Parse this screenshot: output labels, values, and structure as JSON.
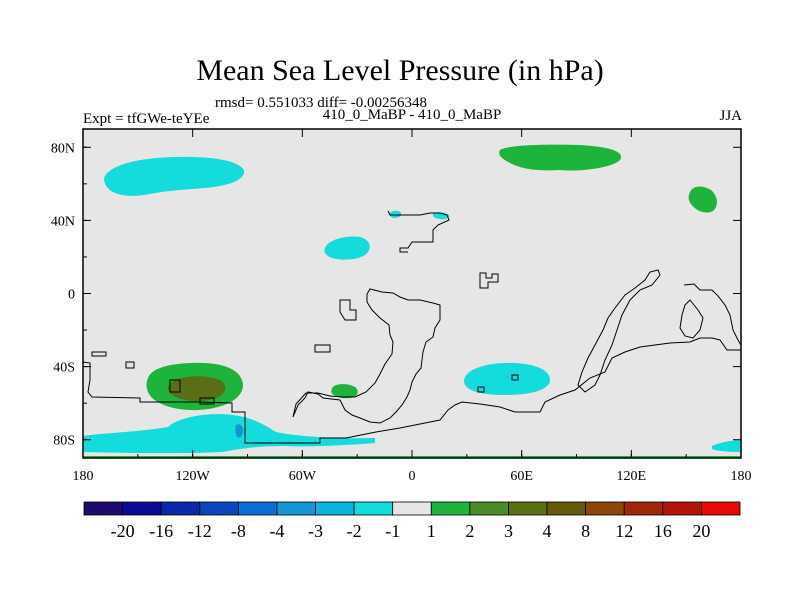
{
  "header": {
    "title": "Mean Sea Level Pressure (in hPa)",
    "stats": "rmsd= 0.551033 diff= -0.00256348",
    "experiment": "Expt = tfGWe-teYEe",
    "comparison": "410_0_MaBP - 410_0_MaBP",
    "season": "JJA"
  },
  "chart_data": {
    "type": "heatmap",
    "title": "Mean Sea Level Pressure (in hPa)",
    "xlabel": "",
    "ylabel": "",
    "xlim": [
      -180,
      180
    ],
    "ylim": [
      -90,
      90
    ],
    "x_ticks": [
      {
        "value": -180,
        "label": "180"
      },
      {
        "value": -120,
        "label": "120W"
      },
      {
        "value": -60,
        "label": "60W"
      },
      {
        "value": 0,
        "label": "0"
      },
      {
        "value": 60,
        "label": "60E"
      },
      {
        "value": 120,
        "label": "120E"
      },
      {
        "value": 180,
        "label": "180"
      }
    ],
    "y_ticks": [
      {
        "value": 80,
        "label": "80N"
      },
      {
        "value": 40,
        "label": "40N"
      },
      {
        "value": 0,
        "label": "0"
      },
      {
        "value": -40,
        "label": "40S"
      },
      {
        "value": -80,
        "label": "80S"
      }
    ],
    "colorbar": {
      "levels": [
        -20,
        -16,
        -12,
        -8,
        -4,
        -3,
        -2,
        -1,
        1,
        2,
        3,
        4,
        8,
        12,
        16,
        20
      ],
      "labels": [
        "-20",
        "-16",
        "-12",
        "-8",
        "-4",
        "-3",
        "-2",
        "-1",
        "1",
        "2",
        "3",
        "4",
        "8",
        "12",
        "16",
        "20"
      ],
      "colors": [
        "#1e0a6e",
        "#0a0a96",
        "#0a28aa",
        "#0a46be",
        "#0a6ed2",
        "#1496d2",
        "#0ab4dc",
        "#14dcdc",
        "#e6e6e6",
        "#1eb43c",
        "#4b8c28",
        "#5a6e14",
        "#645a0a",
        "#8c460a",
        "#a0280a",
        "#b4140a",
        "#e60a0a"
      ]
    },
    "anomaly_regions": [
      {
        "name": "north-pacific-low",
        "sign": "negative",
        "category": "-2 to -1",
        "color": "#14dcdc",
        "lon_range": [
          -168,
          -118
        ],
        "lat_range": [
          60,
          76
        ]
      },
      {
        "name": "arctic-siberia-high",
        "sign": "positive",
        "category": "1 to 2",
        "color": "#1eb43c",
        "lon_range": [
          48,
          116
        ],
        "lat_range": [
          68,
          82
        ]
      },
      {
        "name": "northwest-pacific-high",
        "sign": "positive",
        "category": "1 to 2",
        "color": "#1eb43c",
        "lon_range": [
          153,
          171
        ],
        "lat_range": [
          45,
          60
        ]
      },
      {
        "name": "north-atlantic-low",
        "sign": "negative",
        "category": "-2 to -1",
        "color": "#14dcdc",
        "lon_range": [
          -48,
          -22
        ],
        "lat_range": [
          27,
          40
        ]
      },
      {
        "name": "europe-small-low",
        "sign": "negative",
        "category": "-2 to -1",
        "color": "#14dcdc",
        "lon_range": [
          -10,
          20
        ],
        "lat_range": [
          42,
          47
        ]
      },
      {
        "name": "south-pacific-high",
        "sign": "positive",
        "category": "2 to 4",
        "color": "#4b8c28",
        "lon_range": [
          -147,
          -95
        ],
        "lat_range": [
          -62,
          -38
        ]
      },
      {
        "name": "south-atlantic-high",
        "sign": "positive",
        "category": "1 to 2",
        "color": "#1eb43c",
        "lon_range": [
          -44,
          -28
        ],
        "lat_range": [
          -57,
          -48
        ]
      },
      {
        "name": "indian-ocean-low",
        "sign": "negative",
        "category": "-2 to -1",
        "color": "#14dcdc",
        "lon_range": [
          31,
          81
        ],
        "lat_range": [
          -56,
          -38
        ]
      },
      {
        "name": "antarctic-low",
        "sign": "negative",
        "category": "-3 to -1",
        "color": "#14dcdc",
        "lon_range": [
          -180,
          -20
        ],
        "lat_range": [
          -90,
          -62
        ]
      },
      {
        "name": "antarctic-ross-low",
        "sign": "negative",
        "category": "-2 to -1",
        "color": "#14dcdc",
        "lon_range": [
          162,
          180
        ],
        "lat_range": [
          -90,
          -80
        ]
      }
    ]
  }
}
